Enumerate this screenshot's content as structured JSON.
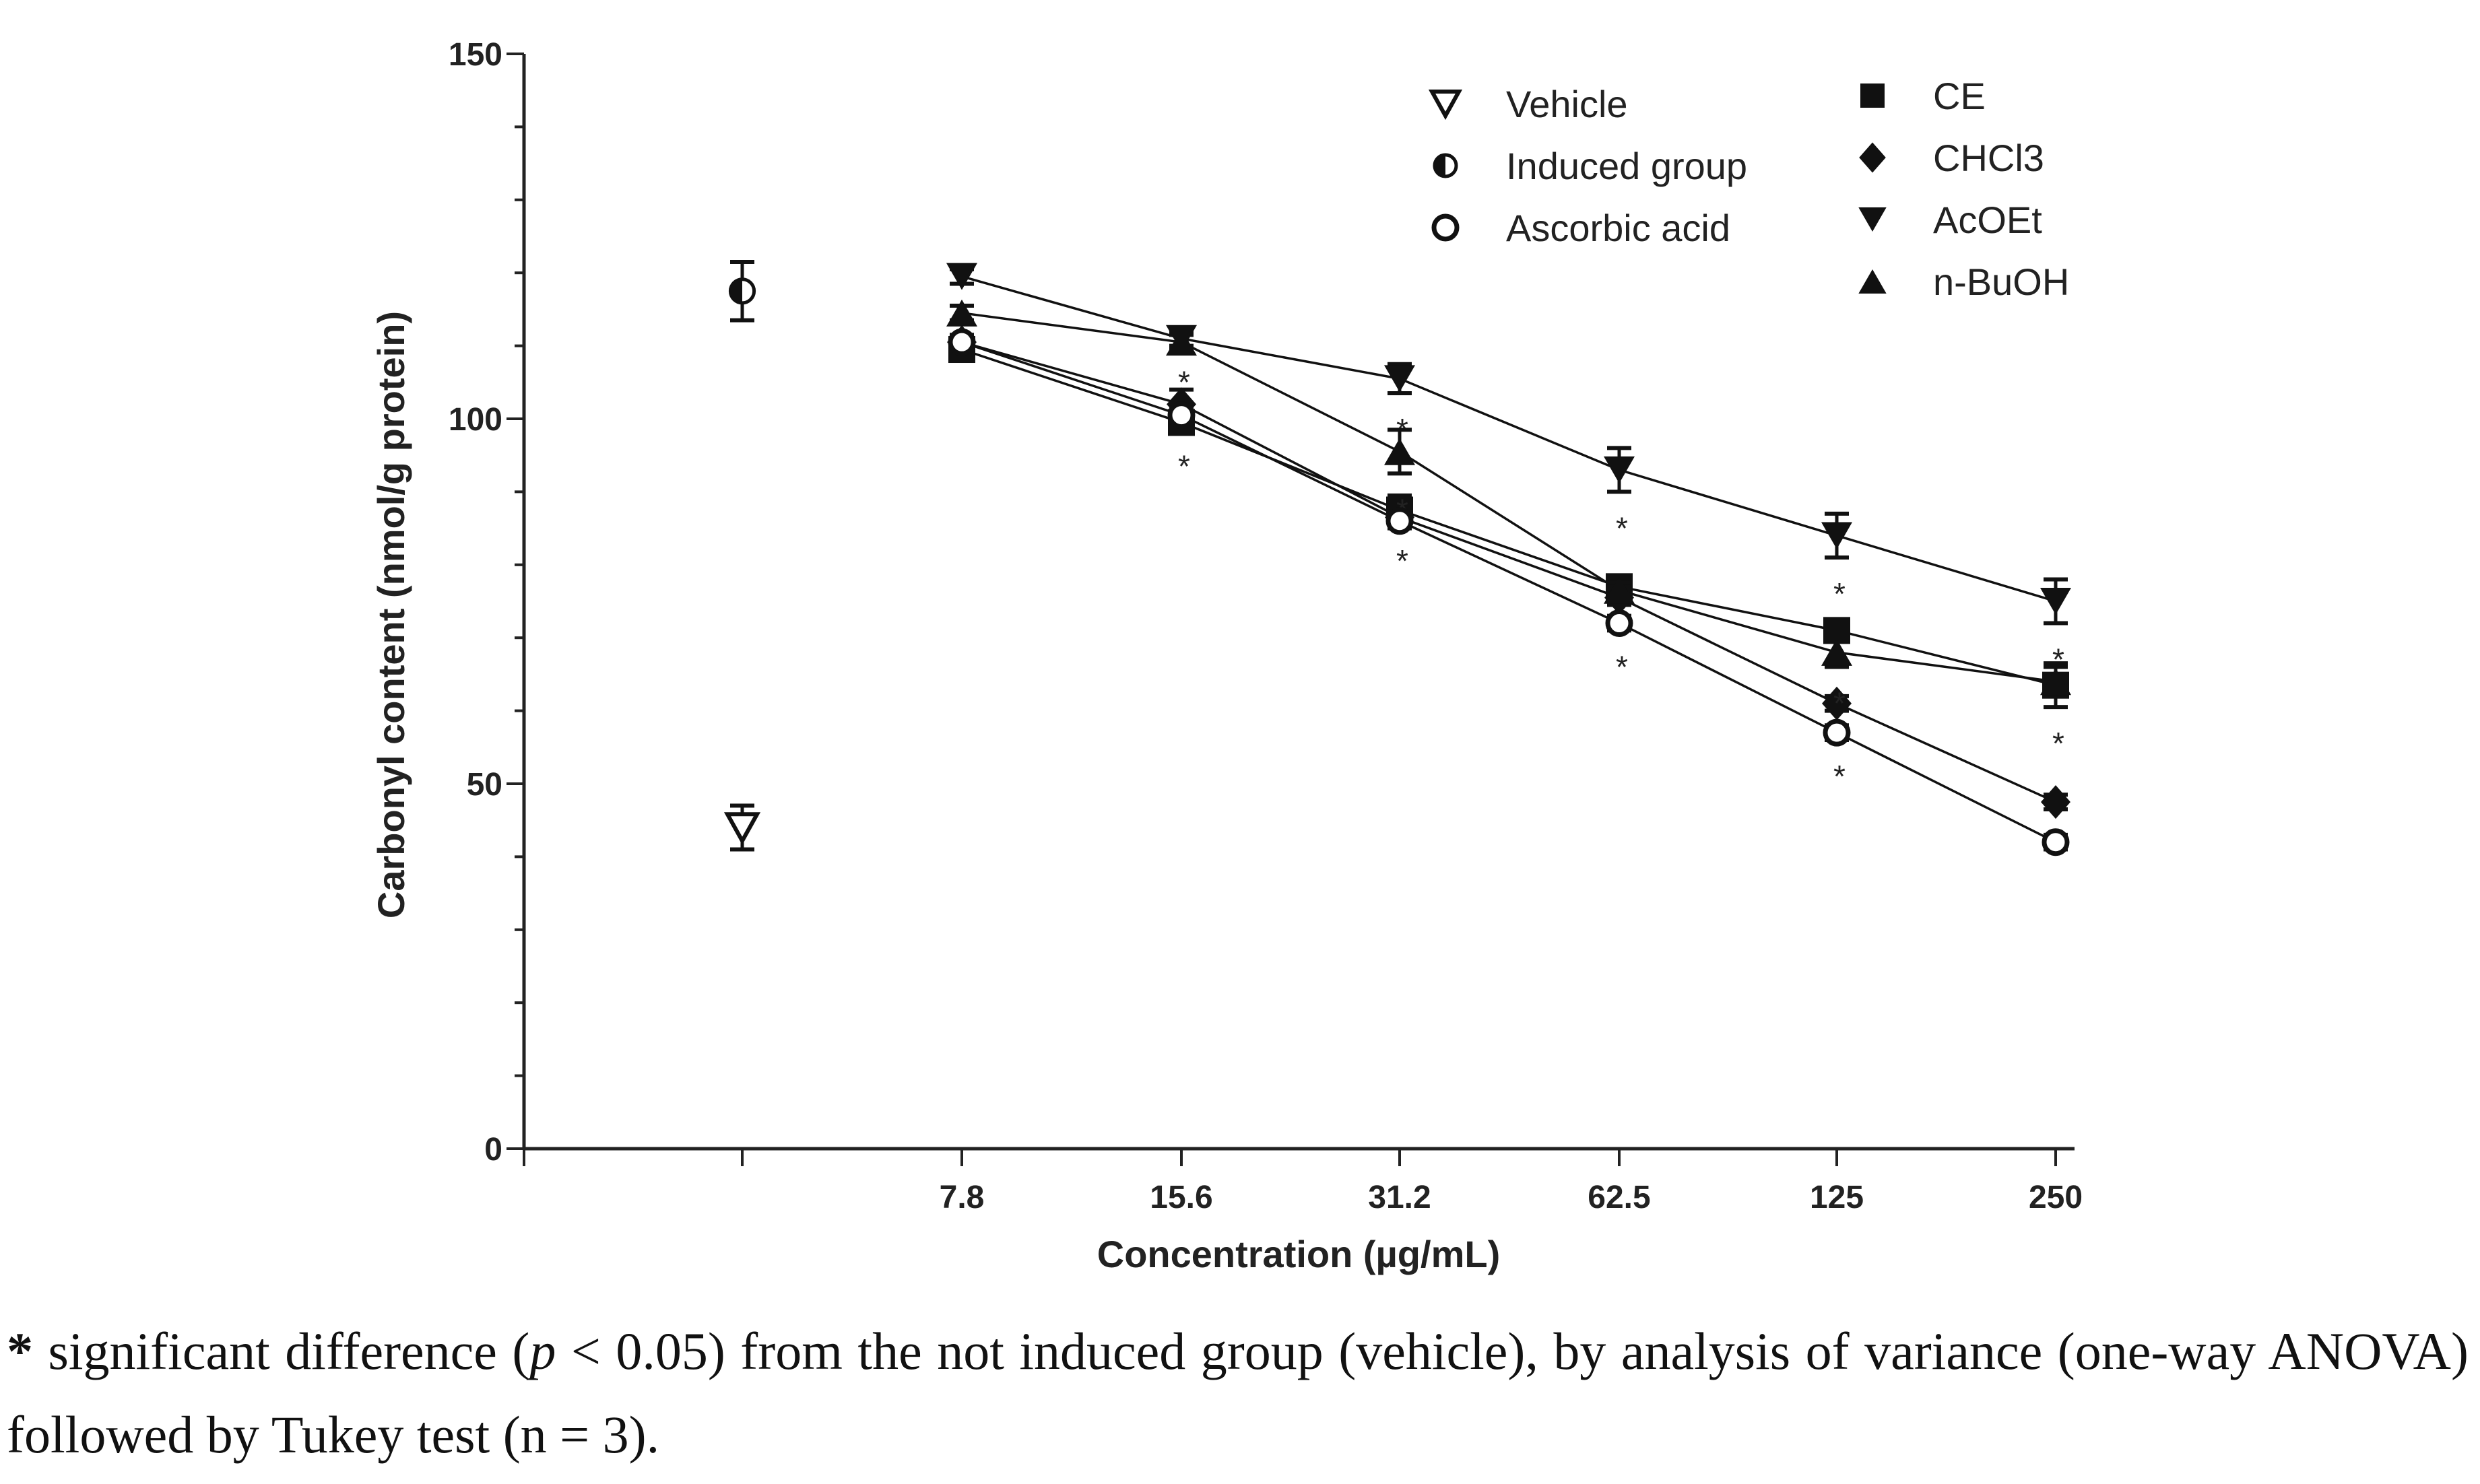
{
  "chart_data": {
    "type": "line",
    "xlabel": "Concentration (µg/mL)",
    "ylabel": "Carbonyl content (nmol/g protein)",
    "ylim": [
      0,
      150
    ],
    "yticks": [
      0,
      50,
      100,
      150
    ],
    "ytick_labels": [
      "0",
      "50",
      "100",
      "150"
    ],
    "categories": [
      "7.8",
      "15.6",
      "31.2",
      "62.5",
      "125",
      "250"
    ],
    "controls": [
      {
        "name": "Vehicle",
        "marker": "triangle-down-open",
        "value": 44,
        "error": 3
      },
      {
        "name": "Induced group",
        "marker": "circle-half",
        "value": 117.5,
        "error": 4
      }
    ],
    "series": [
      {
        "name": "CE",
        "marker": "square",
        "values": [
          109.5,
          99.5,
          87.5,
          77,
          71,
          63.5
        ],
        "errors": [
          1,
          1,
          2,
          1,
          1,
          3
        ],
        "significant": [
          false,
          true,
          false,
          false,
          false,
          true
        ]
      },
      {
        "name": "CHCl3",
        "marker": "diamond",
        "values": [
          110.5,
          102,
          86.5,
          75.5,
          61,
          47.5
        ],
        "errors": [
          1,
          2,
          1,
          1,
          1,
          1
        ],
        "significant": [
          false,
          false,
          true,
          false,
          false,
          false
        ]
      },
      {
        "name": "AcOEt",
        "marker": "triangle-down",
        "values": [
          119.5,
          111,
          105.5,
          93,
          84,
          75
        ],
        "errors": [
          1,
          1,
          2,
          3,
          3,
          3
        ],
        "significant": [
          false,
          true,
          true,
          true,
          true,
          true
        ]
      },
      {
        "name": "n-BuOH",
        "marker": "triangle-up",
        "values": [
          114.5,
          110.5,
          95.5,
          76.5,
          68,
          64
        ],
        "errors": [
          1,
          1,
          3,
          1,
          2,
          2
        ],
        "significant": [
          false,
          false,
          true,
          false,
          true,
          false
        ]
      },
      {
        "name": "Ascorbic acid",
        "marker": "circle-open",
        "values": [
          110.5,
          100.5,
          86,
          72,
          57,
          42
        ],
        "errors": [
          1,
          1,
          1,
          1,
          1,
          1
        ],
        "significant": [
          false,
          false,
          false,
          true,
          true,
          false
        ]
      }
    ],
    "legend_left": [
      "Vehicle",
      "Induced group",
      "Ascorbic acid"
    ],
    "legend_right": [
      "CE",
      "CHCl3",
      "AcOEt",
      "n-BuOH"
    ],
    "significance_symbol": "*"
  },
  "caption": {
    "star": "*",
    "part1": " significant difference (",
    "p": "p",
    "part2": " < 0.05) from the not induced group (vehicle), by analysis of variance (one-way ANOVA) followed by Tukey test (n = 3)."
  }
}
